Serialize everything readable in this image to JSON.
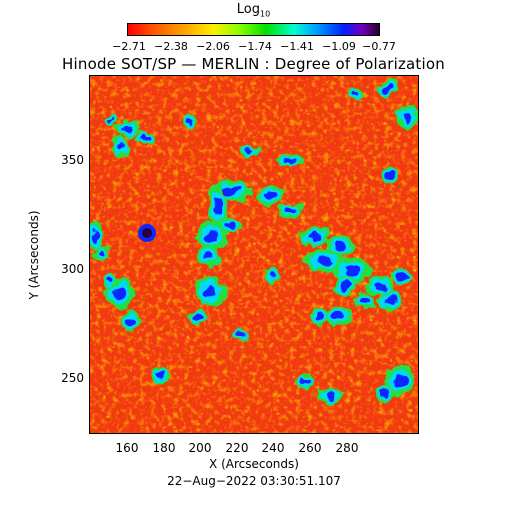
{
  "colorbar": {
    "title_main": "Log",
    "title_sub": "10",
    "ticks": [
      "−2.71",
      "−2.38",
      "−2.06",
      "−1.74",
      "−1.41",
      "−1.09",
      "−0.77"
    ]
  },
  "title": "Hinode SOT/SP — MERLIN : Degree of Polarization",
  "image": {
    "description_colors": {
      "background": "#f23a10",
      "speckle_light": "#ff8a00",
      "speckle_yellow": "#ffd000",
      "network_green": "#20e040",
      "network_cyan": "#00d8ff",
      "network_blue": "#0a28ff",
      "network_dark": "#2a0040"
    }
  },
  "x_axis": {
    "label": "X (Arcseconds)",
    "ticks": [
      "160",
      "180",
      "200",
      "220",
      "240",
      "260",
      "280"
    ]
  },
  "y_axis": {
    "label": "Y (Arcseconds)",
    "ticks": [
      "350",
      "300",
      "250"
    ]
  },
  "timestamp": "22−Aug−2022 03:30:51.107"
}
